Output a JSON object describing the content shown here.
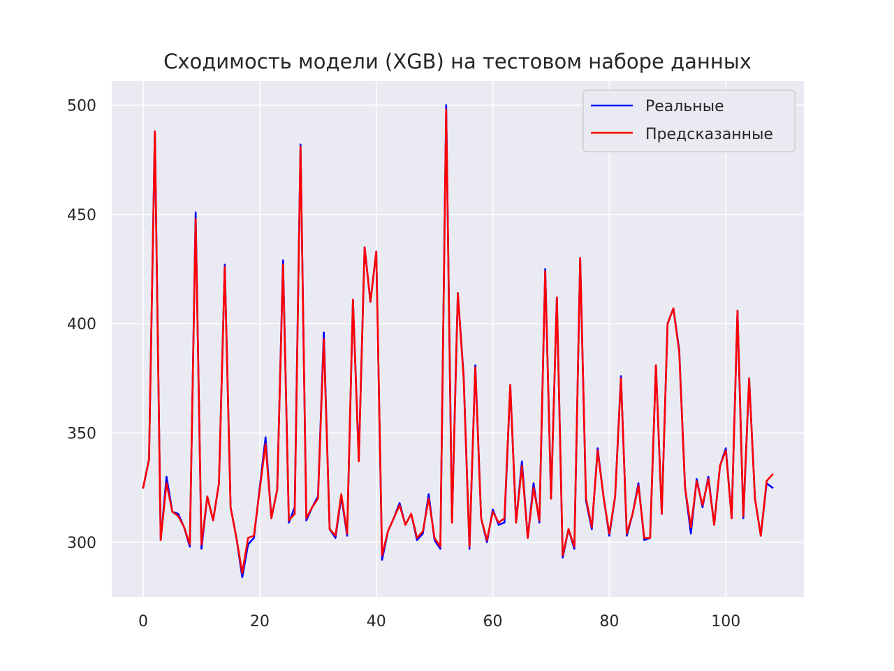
{
  "chart_data": {
    "type": "line",
    "title": "Сходимость модели (XGB) на тестовом наборе данных",
    "xlabel": "",
    "ylabel": "",
    "xlim": [
      -5.4,
      113.4
    ],
    "ylim": [
      275,
      511
    ],
    "x_ticks": [
      0,
      20,
      40,
      60,
      80,
      100
    ],
    "y_ticks": [
      300,
      350,
      400,
      450,
      500
    ],
    "x_tick_labels": [
      "0",
      "20",
      "40",
      "60",
      "80",
      "100"
    ],
    "y_tick_labels": [
      "300",
      "350",
      "400",
      "450",
      "500"
    ],
    "grid": true,
    "legend_position": "top-right",
    "x_start": 0,
    "series": [
      {
        "name": "Реальные",
        "color": "#0000ff",
        "values": [
          325,
          338,
          488,
          301,
          330,
          314,
          313,
          307,
          298,
          451,
          297,
          321,
          310,
          327,
          427,
          316,
          302,
          284,
          299,
          302,
          325,
          348,
          311,
          324,
          429,
          309,
          316,
          482,
          310,
          316,
          321,
          396,
          306,
          302,
          321,
          303,
          411,
          338,
          435,
          410,
          433,
          292,
          305,
          311,
          318,
          308,
          313,
          301,
          304,
          322,
          301,
          297,
          500,
          309,
          414,
          376,
          297,
          381,
          311,
          300,
          315,
          308,
          309,
          372,
          309,
          337,
          302,
          327,
          309,
          425,
          320,
          412,
          293,
          306,
          297,
          430,
          319,
          306,
          343,
          321,
          303,
          321,
          376,
          303,
          313,
          327,
          301,
          302,
          381,
          313,
          400,
          407,
          388,
          325,
          304,
          329,
          316,
          330,
          308,
          335,
          343,
          311,
          406,
          311,
          375,
          320,
          303,
          327,
          325
        ],
        "label_x": 0
      },
      {
        "name": "Предсказанные",
        "color": "#ff0000",
        "values": [
          325,
          338,
          488,
          301,
          327,
          314,
          312,
          307,
          299,
          448,
          299,
          321,
          310,
          327,
          426,
          316,
          302,
          286,
          302,
          303,
          324,
          345,
          311,
          324,
          427,
          310,
          313,
          481,
          311,
          316,
          320,
          393,
          306,
          303,
          322,
          304,
          411,
          337,
          435,
          410,
          433,
          294,
          305,
          311,
          317,
          308,
          313,
          302,
          305,
          320,
          302,
          298,
          498,
          309,
          414,
          375,
          298,
          380,
          311,
          301,
          314,
          309,
          311,
          372,
          309,
          335,
          302,
          325,
          310,
          424,
          320,
          412,
          294,
          306,
          298,
          430,
          320,
          307,
          342,
          321,
          304,
          321,
          375,
          304,
          313,
          326,
          302,
          302,
          381,
          313,
          400,
          407,
          387,
          325,
          307,
          328,
          317,
          329,
          308,
          335,
          342,
          311,
          406,
          312,
          375,
          320,
          303,
          328,
          331
        ],
        "label_x": 0
      }
    ]
  }
}
